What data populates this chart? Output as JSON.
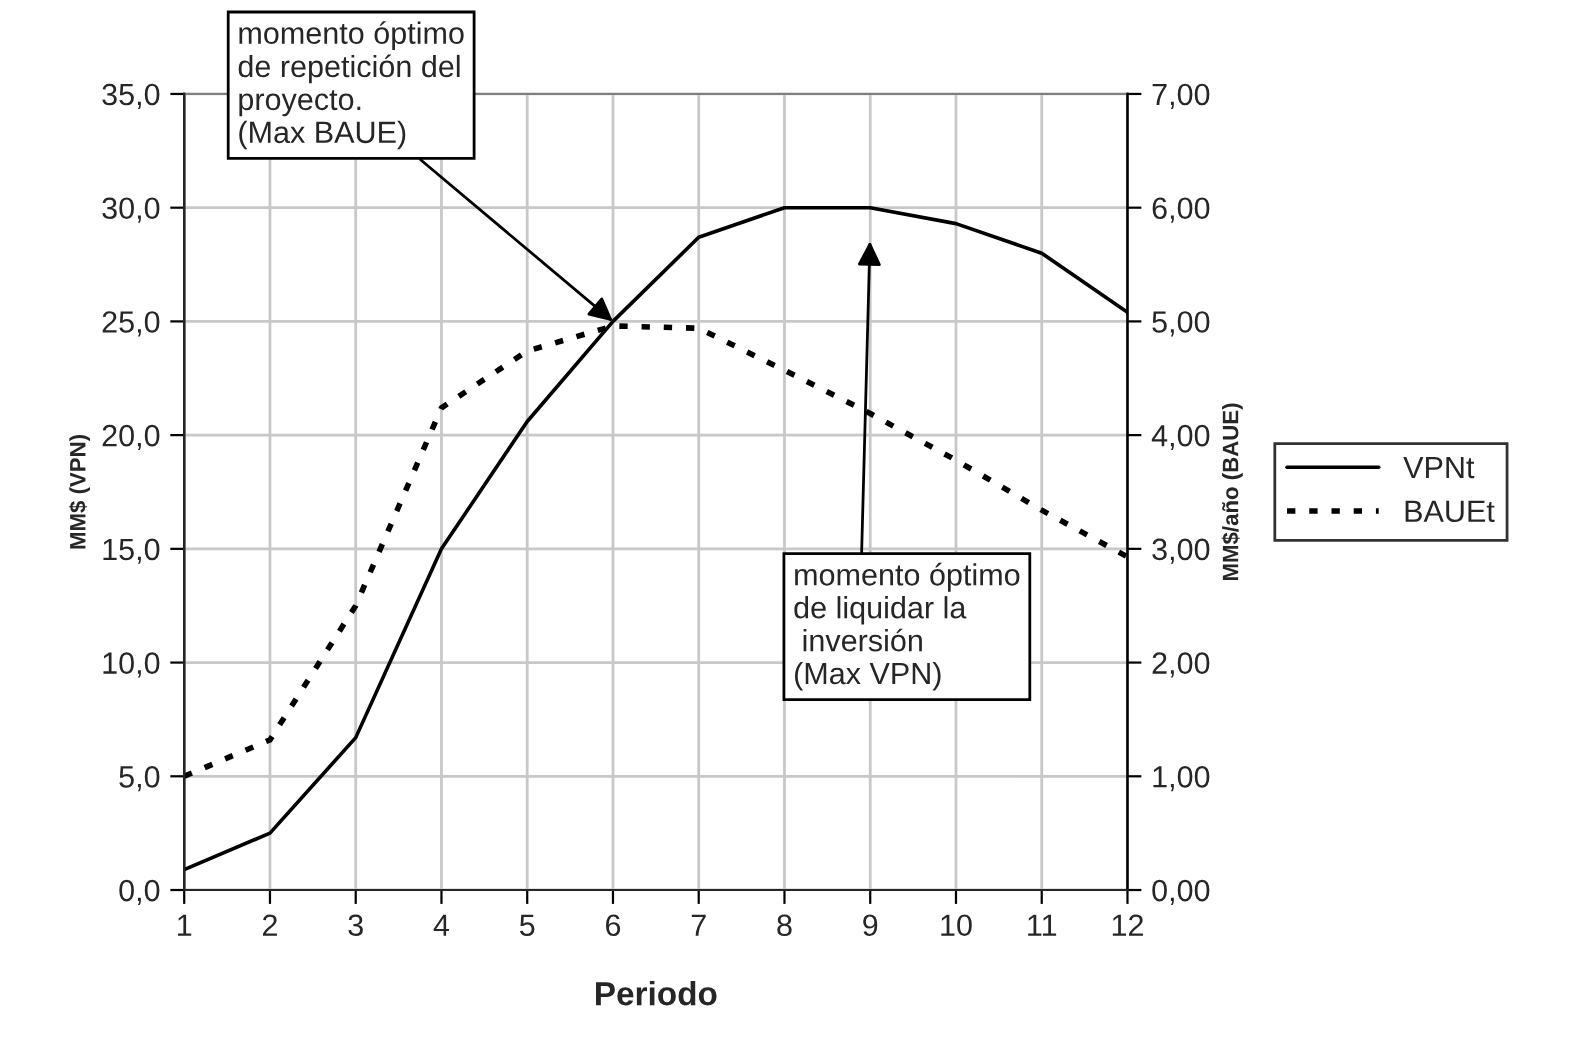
{
  "chart_data": {
    "type": "line",
    "x": [
      1,
      2,
      3,
      4,
      5,
      6,
      7,
      8,
      9,
      10,
      11,
      12
    ],
    "xlabel": "Periodo",
    "ylabel": "MM$ (VPN)",
    "y2label": "MM$/año (BAUE)",
    "series": [
      {
        "name": "VPNt",
        "color": "#000000",
        "line_style": "solid",
        "values": [
          0.9,
          2.5,
          6.7,
          15.0,
          20.6,
          25.0,
          28.7,
          30.0,
          30.0,
          29.3,
          28.0,
          25.4
        ]
      },
      {
        "name": "BAUEt",
        "color": "#000000",
        "line_style": "dotted",
        "axis": "y2",
        "values": [
          1.0,
          1.32,
          2.5,
          4.24,
          4.74,
          4.96,
          4.94,
          4.57,
          4.19,
          3.78,
          3.34,
          2.93
        ]
      }
    ],
    "xlim": [
      1,
      12
    ],
    "xticks": [
      1,
      2,
      3,
      4,
      5,
      6,
      7,
      8,
      9,
      10,
      11,
      12
    ],
    "ylim": [
      0,
      35
    ],
    "yticks": [
      {
        "value": 0,
        "label": "0,0"
      },
      {
        "value": 5,
        "label": "5,0"
      },
      {
        "value": 10,
        "label": "10,0"
      },
      {
        "value": 15,
        "label": "15,0"
      },
      {
        "value": 20,
        "label": "20,0"
      },
      {
        "value": 25,
        "label": "25,0"
      },
      {
        "value": 30,
        "label": "30,0"
      },
      {
        "value": 35,
        "label": "35,0"
      }
    ],
    "y2lim": [
      0,
      7
    ],
    "y2ticks": [
      {
        "value": 0,
        "label": "0,00"
      },
      {
        "value": 1,
        "label": "1,00"
      },
      {
        "value": 2,
        "label": "2,00"
      },
      {
        "value": 3,
        "label": "3,00"
      },
      {
        "value": 4,
        "label": "4,00"
      },
      {
        "value": 5,
        "label": "5,00"
      },
      {
        "value": 6,
        "label": "6,00"
      },
      {
        "value": 7,
        "label": "7,00"
      }
    ],
    "annotations": [
      {
        "text": "momento óptimo\nde repetición del\nproyecto.\n(Max BAUE)",
        "x": 6,
        "y": 25.0
      },
      "momento óptimo\nde liquidar la\n inversión\n(Max VPN)"
    ],
    "grid": true,
    "legend": "right"
  }
}
